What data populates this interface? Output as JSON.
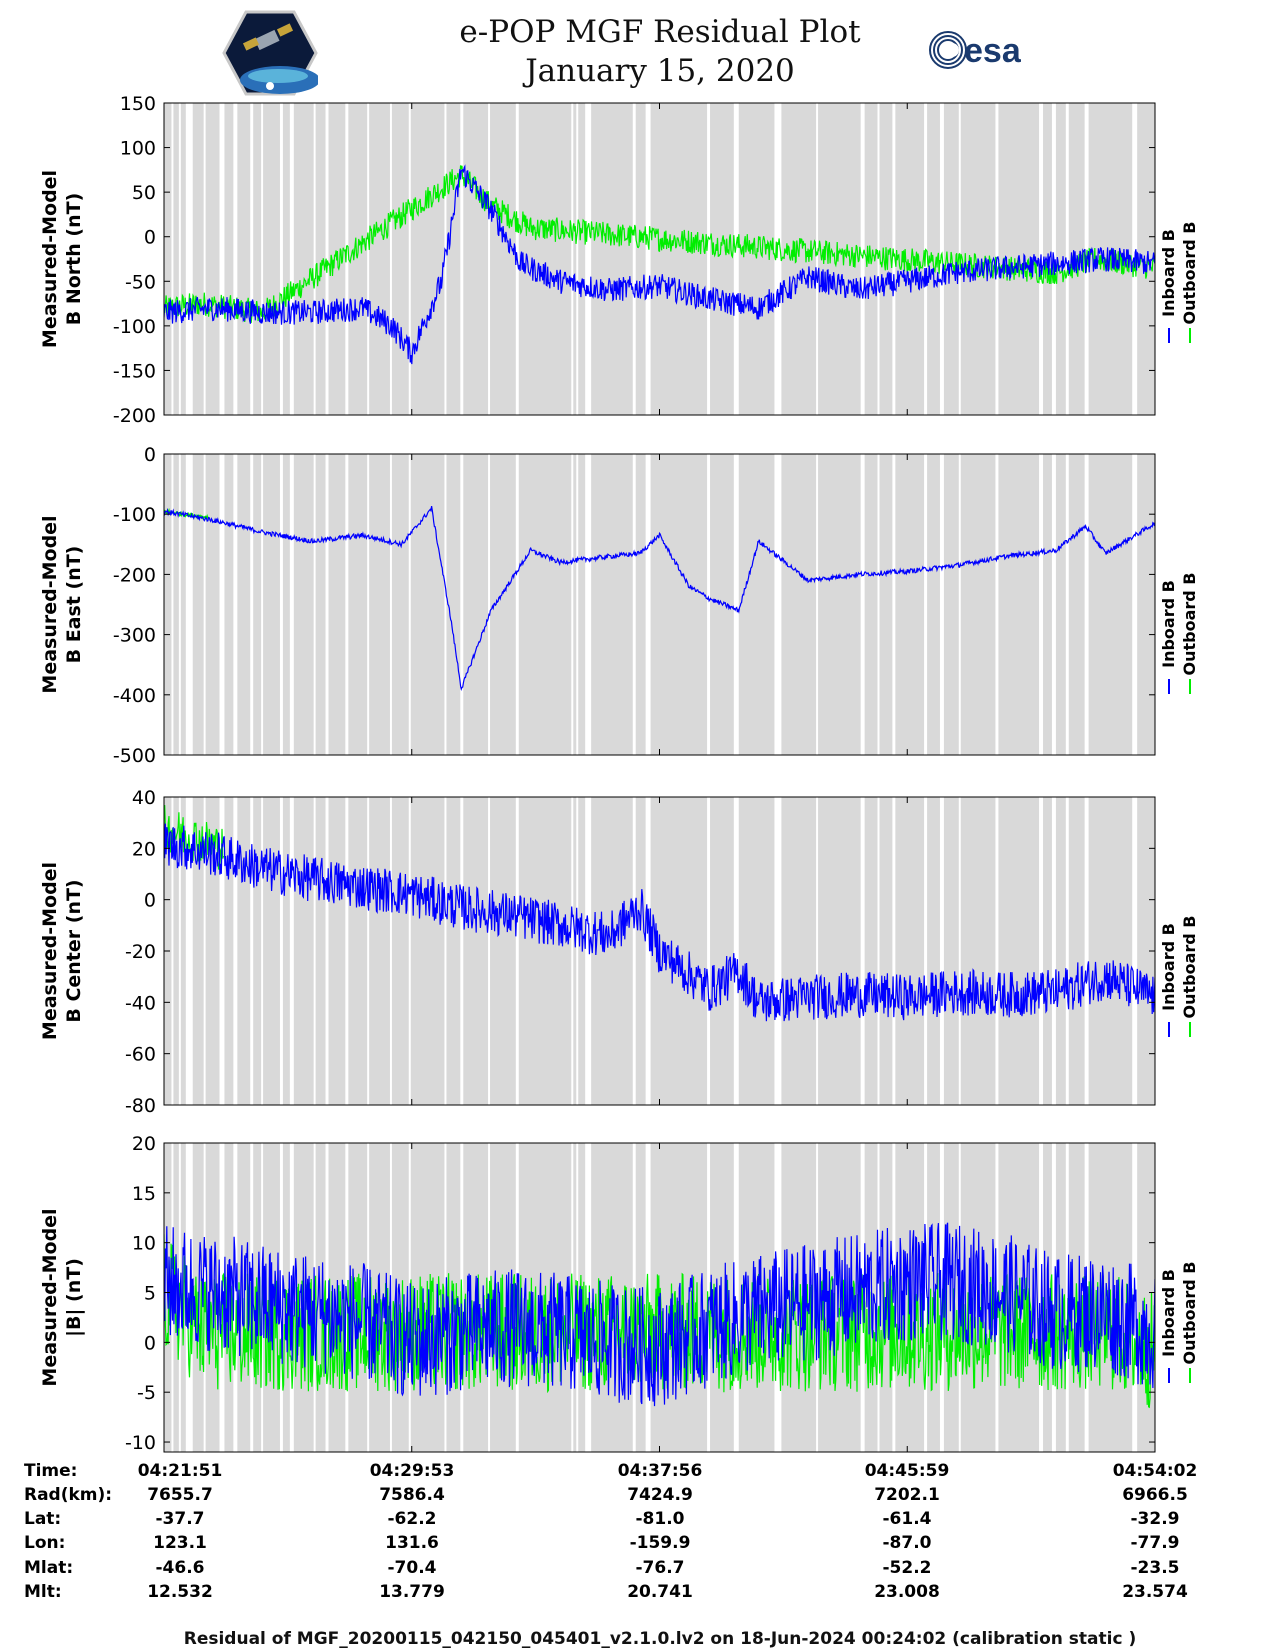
{
  "header": {
    "title": "e-POP MGF Residual Plot",
    "subtitle": "January 15, 2020",
    "left_logo": "cassiope-mission-logo",
    "right_logo_text": "esa"
  },
  "chart_data": [
    {
      "type": "line",
      "ylabel": [
        "Measured-Model",
        "B North (nT)"
      ],
      "ylim": [
        -200,
        150
      ],
      "yticks": [
        150,
        100,
        50,
        0,
        -50,
        -100,
        -150,
        -200
      ],
      "legend": [
        "Inboard B",
        "Outboard B"
      ],
      "legend_placement": "right",
      "series": [
        {
          "name": "Inboard B",
          "color": "#0000ff",
          "x": [
            0,
            0.05,
            0.1,
            0.15,
            0.2,
            0.23,
            0.25,
            0.28,
            0.3,
            0.33,
            0.36,
            0.4,
            0.45,
            0.5,
            0.55,
            0.6,
            0.65,
            0.7,
            0.75,
            0.8,
            0.85,
            0.9,
            0.95,
            1.0
          ],
          "values": [
            -85,
            -80,
            -85,
            -85,
            -80,
            -100,
            -130,
            -50,
            75,
            30,
            -30,
            -50,
            -60,
            -55,
            -70,
            -80,
            -45,
            -60,
            -50,
            -40,
            -35,
            -30,
            -25,
            -30
          ]
        },
        {
          "name": "Outboard B",
          "color": "#00ee00",
          "x": [
            0,
            0.04,
            0.1,
            0.3,
            0.33,
            0.37,
            0.9,
            0.94,
            0.97,
            1.0
          ],
          "values": [
            -80,
            -75,
            -85,
            70,
            35,
            10,
            -40,
            -25,
            -30,
            -35
          ]
        }
      ]
    },
    {
      "type": "line",
      "ylabel": [
        "Measured-Model",
        "B East (nT)"
      ],
      "ylim": [
        -500,
        0
      ],
      "yticks": [
        0,
        -100,
        -200,
        -300,
        -400,
        -500
      ],
      "legend": [
        "Inboard B",
        "Outboard B"
      ],
      "legend_placement": "right",
      "series": [
        {
          "name": "Inboard B",
          "color": "#0000ff",
          "x": [
            0,
            0.05,
            0.1,
            0.15,
            0.2,
            0.24,
            0.27,
            0.29,
            0.3,
            0.33,
            0.37,
            0.4,
            0.45,
            0.48,
            0.5,
            0.53,
            0.55,
            0.58,
            0.6,
            0.65,
            0.7,
            0.75,
            0.8,
            0.85,
            0.9,
            0.93,
            0.95,
            1.0
          ],
          "values": [
            -95,
            -110,
            -130,
            -145,
            -135,
            -150,
            -90,
            -280,
            -390,
            -260,
            -160,
            -180,
            -170,
            -165,
            -135,
            -220,
            -240,
            -260,
            -145,
            -210,
            -200,
            -195,
            -185,
            -170,
            -160,
            -120,
            -165,
            -115
          ]
        },
        {
          "name": "Outboard B",
          "color": "#00ee00",
          "x": [
            0,
            0.02,
            0.045
          ],
          "values": [
            -95,
            -100,
            -105
          ]
        }
      ]
    },
    {
      "type": "line",
      "ylabel": [
        "Measured-Model",
        "B Center (nT)"
      ],
      "ylim": [
        -80,
        40
      ],
      "yticks": [
        40,
        20,
        0,
        -20,
        -40,
        -60,
        -80
      ],
      "legend": [
        "Inboard B",
        "Outboard B"
      ],
      "legend_placement": "right",
      "series": [
        {
          "name": "Inboard B",
          "color": "#0000ff",
          "x": [
            0,
            0.05,
            0.1,
            0.15,
            0.2,
            0.25,
            0.3,
            0.35,
            0.4,
            0.45,
            0.48,
            0.5,
            0.55,
            0.58,
            0.6,
            0.65,
            0.7,
            0.75,
            0.8,
            0.85,
            0.9,
            0.95,
            1.0
          ],
          "values": [
            22,
            18,
            12,
            8,
            5,
            2,
            -3,
            -6,
            -10,
            -14,
            -3,
            -20,
            -35,
            -28,
            -40,
            -38,
            -37,
            -38,
            -36,
            -37,
            -36,
            -30,
            -38
          ]
        },
        {
          "name": "Outboard B",
          "color": "#00ee00",
          "x": [
            0,
            0.03,
            0.06
          ],
          "values": [
            28,
            24,
            20
          ]
        }
      ]
    },
    {
      "type": "line",
      "ylabel": [
        "Measured-Model",
        "|B| (nT)"
      ],
      "ylim": [
        -11,
        20
      ],
      "yticks": [
        20,
        15,
        10,
        5,
        0,
        -5,
        -10
      ],
      "legend": [
        "Inboard B",
        "Outboard B"
      ],
      "legend_placement": "right",
      "series": [
        {
          "name": "Inboard B",
          "color": "#0000ff",
          "x": [
            0,
            0.05,
            0.1,
            0.15,
            0.2,
            0.25,
            0.3,
            0.35,
            0.4,
            0.45,
            0.5,
            0.55,
            0.6,
            0.65,
            0.7,
            0.75,
            0.8,
            0.85,
            0.9,
            0.95,
            1.0
          ],
          "values": [
            6,
            5,
            4,
            3,
            2,
            0,
            1,
            1.5,
            1,
            0,
            -0.5,
            1.5,
            3,
            4,
            5,
            6,
            6,
            5,
            3,
            3,
            1
          ]
        },
        {
          "name": "Outboard B",
          "color": "#00ee00",
          "x": [
            0,
            0.02,
            0.04,
            0.92,
            0.96,
            1.0
          ],
          "values": [
            5,
            3,
            1,
            1,
            1,
            -1
          ]
        }
      ]
    }
  ],
  "gray_bands": [
    [
      0.0,
      0.0075
    ],
    [
      0.0095,
      0.015
    ],
    [
      0.017,
      0.022
    ],
    [
      0.029,
      0.04
    ],
    [
      0.042,
      0.056
    ],
    [
      0.061,
      0.07
    ],
    [
      0.074,
      0.087
    ],
    [
      0.09,
      0.098
    ],
    [
      0.1,
      0.117
    ],
    [
      0.12,
      0.127
    ],
    [
      0.131,
      0.151
    ],
    [
      0.153,
      0.163
    ],
    [
      0.166,
      0.183
    ],
    [
      0.186,
      0.205
    ],
    [
      0.207,
      0.228
    ],
    [
      0.23,
      0.247
    ],
    [
      0.249,
      0.283
    ],
    [
      0.285,
      0.299
    ],
    [
      0.302,
      0.327
    ],
    [
      0.329,
      0.355
    ],
    [
      0.358,
      0.411
    ],
    [
      0.413,
      0.416
    ],
    [
      0.418,
      0.425
    ],
    [
      0.431,
      0.473
    ],
    [
      0.476,
      0.486
    ],
    [
      0.491,
      0.548
    ],
    [
      0.551,
      0.575
    ],
    [
      0.58,
      0.616
    ],
    [
      0.623,
      0.658
    ],
    [
      0.66,
      0.703
    ],
    [
      0.707,
      0.72
    ],
    [
      0.722,
      0.735
    ],
    [
      0.738,
      0.767
    ],
    [
      0.77,
      0.783
    ],
    [
      0.787,
      0.802
    ],
    [
      0.804,
      0.839
    ],
    [
      0.842,
      0.883
    ],
    [
      0.887,
      0.896
    ],
    [
      0.9,
      0.91
    ],
    [
      0.913,
      0.929
    ],
    [
      0.933,
      0.977
    ],
    [
      0.982,
      1.0
    ]
  ],
  "x_axis": {
    "row_labels": [
      "Time:",
      "Rad(km):",
      "Lat:",
      "Lon:",
      "Mlat:",
      "Mlt:"
    ],
    "columns": [
      [
        "04:21:51",
        "7655.7",
        "-37.7",
        "123.1",
        "-46.6",
        "12.532"
      ],
      [
        "04:29:53",
        "7586.4",
        "-62.2",
        "131.6",
        "-70.4",
        "13.779"
      ],
      [
        "04:37:56",
        "7424.9",
        "-81.0",
        "-159.9",
        "-76.7",
        "20.741"
      ],
      [
        "04:45:59",
        "7202.1",
        "-61.4",
        "-87.0",
        "-52.2",
        "23.008"
      ],
      [
        "04:54:02",
        "6966.5",
        "-32.9",
        "-77.9",
        "-23.5",
        "23.574"
      ]
    ]
  },
  "footer": "Residual of MGF_20200115_042150_045401_v2.1.0.lv2 on 18-Jun-2024 00:24:02 (calibration static )"
}
